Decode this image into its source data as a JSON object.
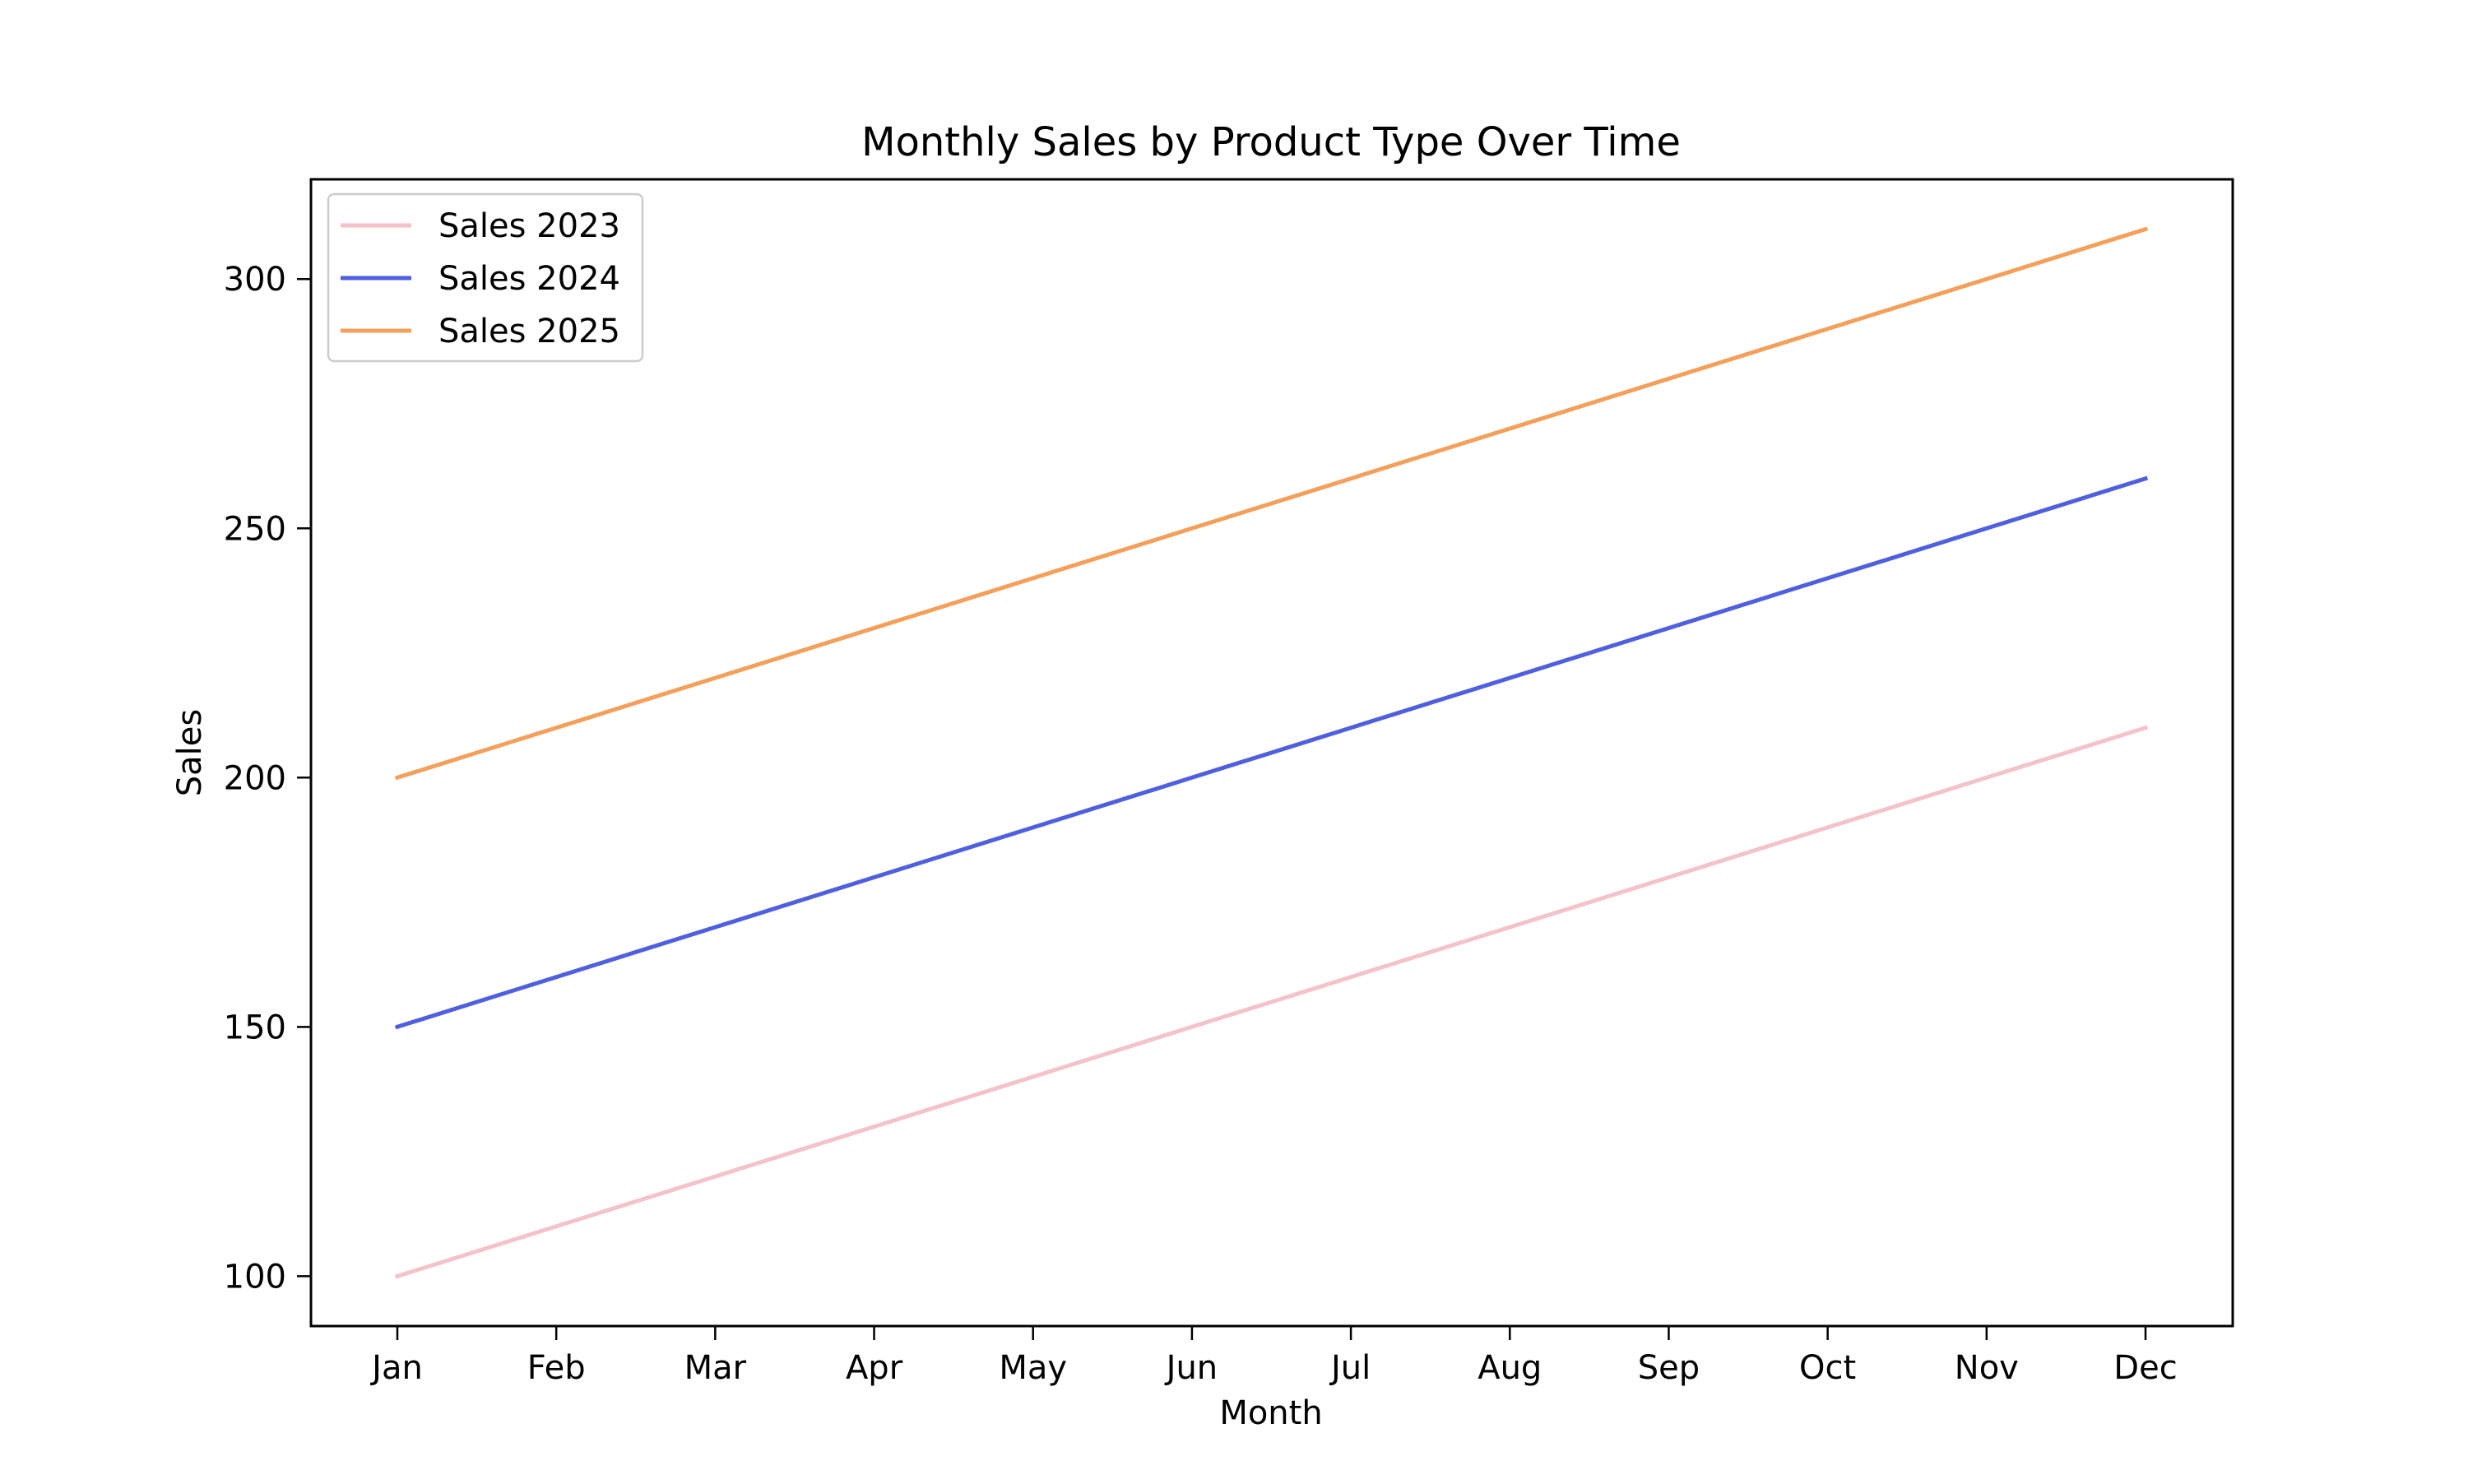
{
  "chart_data": {
    "type": "line",
    "title": "Monthly Sales by Product Type Over Time",
    "xlabel": "Month",
    "ylabel": "Sales",
    "categories": [
      "Jan",
      "Feb",
      "Mar",
      "Apr",
      "May",
      "Jun",
      "Jul",
      "Aug",
      "Sep",
      "Oct",
      "Nov",
      "Dec"
    ],
    "yticks": [
      100,
      150,
      200,
      250,
      300
    ],
    "ylim": [
      90,
      320
    ],
    "grid": false,
    "legend_position": "top-left",
    "series": [
      {
        "name": "Sales 2023",
        "color": "#f4c2c9",
        "values": [
          100,
          110,
          120,
          130,
          140,
          150,
          160,
          170,
          180,
          190,
          200,
          210
        ]
      },
      {
        "name": "Sales 2024",
        "color": "#4e5fe0",
        "values": [
          150,
          160,
          170,
          180,
          190,
          200,
          210,
          220,
          230,
          240,
          250,
          260
        ]
      },
      {
        "name": "Sales 2025",
        "color": "#f4a05a",
        "values": [
          200,
          210,
          220,
          230,
          240,
          250,
          260,
          270,
          280,
          290,
          300,
          310
        ]
      }
    ]
  }
}
